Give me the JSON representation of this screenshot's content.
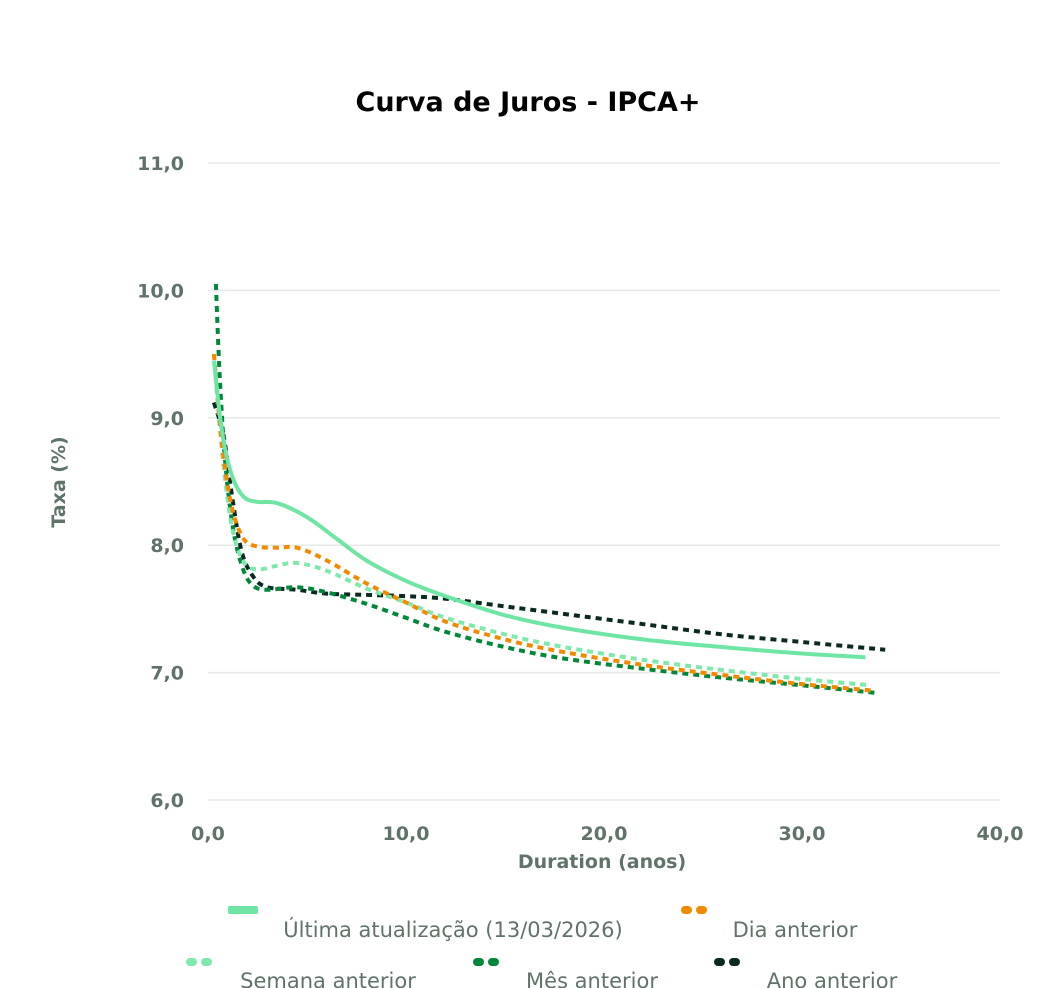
{
  "chart_data": {
    "type": "line",
    "title": "Curva de Juros - IPCA+",
    "xlabel": "Duration (anos)",
    "ylabel": "Taxa (%)",
    "xlim": [
      0,
      40
    ],
    "ylim": [
      6,
      11
    ],
    "x_ticks": [
      "0,0",
      "10,0",
      "20,0",
      "30,0",
      "40,0"
    ],
    "y_ticks": [
      "6,0",
      "7,0",
      "8,0",
      "9,0",
      "10,0",
      "11,0"
    ],
    "grid": true,
    "legend_position": "bottom",
    "series": [
      {
        "name": "Última atualização (13/03/2026)",
        "color": "#6ee5a3",
        "style": "solid",
        "points": [
          [
            0.3,
            9.45
          ],
          [
            0.7,
            8.9
          ],
          [
            1.2,
            8.55
          ],
          [
            1.8,
            8.38
          ],
          [
            2.5,
            8.34
          ],
          [
            3.5,
            8.33
          ],
          [
            5,
            8.22
          ],
          [
            6.5,
            8.05
          ],
          [
            8,
            7.88
          ],
          [
            10,
            7.72
          ],
          [
            12,
            7.6
          ],
          [
            15,
            7.45
          ],
          [
            18,
            7.35
          ],
          [
            22,
            7.26
          ],
          [
            26,
            7.2
          ],
          [
            30,
            7.15
          ],
          [
            33.2,
            7.12
          ]
        ]
      },
      {
        "name": "Dia anterior",
        "color": "#f28a00",
        "style": "dashed",
        "points": [
          [
            0.3,
            9.5
          ],
          [
            0.7,
            8.8
          ],
          [
            1.2,
            8.3
          ],
          [
            1.8,
            8.05
          ],
          [
            2.5,
            7.99
          ],
          [
            3.5,
            7.98
          ],
          [
            4.5,
            7.98
          ],
          [
            6,
            7.88
          ],
          [
            8,
            7.7
          ],
          [
            10,
            7.55
          ],
          [
            12,
            7.4
          ],
          [
            15,
            7.26
          ],
          [
            18,
            7.16
          ],
          [
            22,
            7.06
          ],
          [
            26,
            6.98
          ],
          [
            30,
            6.91
          ],
          [
            33.5,
            6.86
          ]
        ]
      },
      {
        "name": "Semana anterior",
        "color": "#7fe8ad",
        "style": "dashed",
        "points": [
          [
            0.3,
            9.5
          ],
          [
            0.7,
            8.75
          ],
          [
            1.2,
            8.15
          ],
          [
            1.8,
            7.87
          ],
          [
            2.5,
            7.81
          ],
          [
            3.5,
            7.84
          ],
          [
            4.5,
            7.86
          ],
          [
            6,
            7.8
          ],
          [
            8,
            7.66
          ],
          [
            10,
            7.55
          ],
          [
            12,
            7.43
          ],
          [
            15,
            7.3
          ],
          [
            18,
            7.2
          ],
          [
            22,
            7.1
          ],
          [
            26,
            7.02
          ],
          [
            30,
            6.95
          ],
          [
            33.5,
            6.9
          ]
        ]
      },
      {
        "name": "Mês anterior",
        "color": "#00873a",
        "style": "dashed",
        "points": [
          [
            0.4,
            10.05
          ],
          [
            0.6,
            9.3
          ],
          [
            0.9,
            8.6
          ],
          [
            1.3,
            8.1
          ],
          [
            1.8,
            7.8
          ],
          [
            2.3,
            7.68
          ],
          [
            3,
            7.65
          ],
          [
            4.5,
            7.67
          ],
          [
            6,
            7.63
          ],
          [
            8,
            7.54
          ],
          [
            10,
            7.43
          ],
          [
            12,
            7.32
          ],
          [
            15,
            7.2
          ],
          [
            18,
            7.11
          ],
          [
            22,
            7.03
          ],
          [
            26,
            6.96
          ],
          [
            30,
            6.9
          ],
          [
            33.8,
            6.84
          ]
        ]
      },
      {
        "name": "Ano anterior",
        "color": "#0b2a1f",
        "style": "dashed",
        "points": [
          [
            0.3,
            9.12
          ],
          [
            0.8,
            8.85
          ],
          [
            1.2,
            8.4
          ],
          [
            1.7,
            7.95
          ],
          [
            2.3,
            7.75
          ],
          [
            3,
            7.67
          ],
          [
            4.5,
            7.65
          ],
          [
            6,
            7.62
          ],
          [
            8,
            7.61
          ],
          [
            10,
            7.6
          ],
          [
            12,
            7.58
          ],
          [
            15,
            7.52
          ],
          [
            18,
            7.46
          ],
          [
            22,
            7.38
          ],
          [
            26,
            7.3
          ],
          [
            30,
            7.24
          ],
          [
            34.2,
            7.18
          ]
        ]
      }
    ]
  }
}
